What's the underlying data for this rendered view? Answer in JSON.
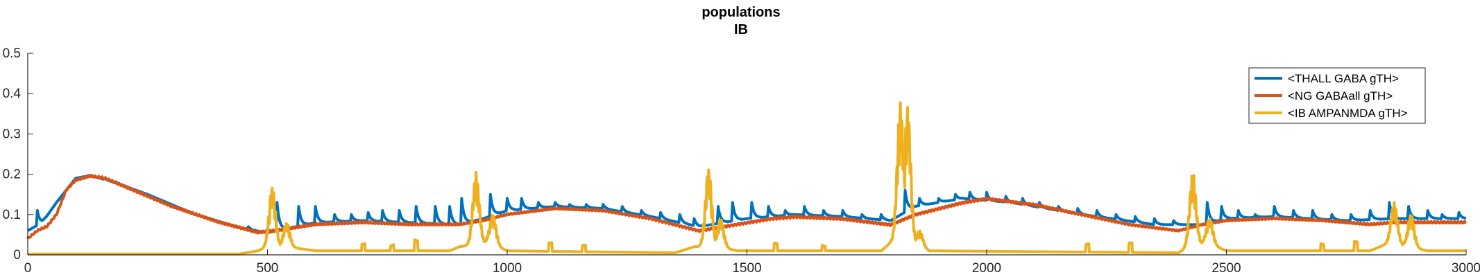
{
  "chart_data": {
    "type": "line",
    "title": "populations",
    "subtitle": "IB",
    "xlabel": "",
    "ylabel": "",
    "xlim": [
      0,
      3000
    ],
    "ylim": [
      0,
      0.5
    ],
    "x_ticks": [
      0,
      500,
      1000,
      1500,
      2000,
      2500,
      3000
    ],
    "y_ticks": [
      0,
      0.1,
      0.2,
      0.3,
      0.4,
      0.5
    ],
    "y_tick_labels": [
      "0",
      "0.1",
      "0.2",
      "0.3",
      "0.4",
      "0.5"
    ],
    "grid": false,
    "legend_position": "top-right",
    "colors": {
      "thall": "#0072BD",
      "ng": "#D95319",
      "ib": "#EDB120",
      "axis": "#262626"
    },
    "series": [
      {
        "name": "<THALL GABA gTH>",
        "color": "#0072BD",
        "envelope": [
          [
            0,
            0.06
          ],
          [
            30,
            0.08
          ],
          [
            60,
            0.13
          ],
          [
            100,
            0.19
          ],
          [
            130,
            0.197
          ],
          [
            180,
            0.18
          ],
          [
            250,
            0.15
          ],
          [
            350,
            0.1
          ],
          [
            450,
            0.065
          ],
          [
            500,
            0.055
          ],
          [
            600,
            0.08
          ],
          [
            700,
            0.085
          ],
          [
            800,
            0.08
          ],
          [
            900,
            0.075
          ],
          [
            950,
            0.09
          ],
          [
            1000,
            0.11
          ],
          [
            1100,
            0.12
          ],
          [
            1200,
            0.115
          ],
          [
            1300,
            0.095
          ],
          [
            1400,
            0.07
          ],
          [
            1500,
            0.09
          ],
          [
            1600,
            0.1
          ],
          [
            1700,
            0.095
          ],
          [
            1800,
            0.085
          ],
          [
            1850,
            0.12
          ],
          [
            1950,
            0.14
          ],
          [
            2050,
            0.13
          ],
          [
            2200,
            0.1
          ],
          [
            2350,
            0.075
          ],
          [
            2450,
            0.075
          ],
          [
            2500,
            0.09
          ],
          [
            2600,
            0.095
          ],
          [
            2750,
            0.085
          ],
          [
            2850,
            0.09
          ],
          [
            3000,
            0.09
          ]
        ],
        "spikes": [
          [
            20,
            0.11
          ],
          [
            60,
            0.115
          ],
          [
            95,
            0.13
          ],
          [
            160,
            0.19
          ],
          [
            185,
            0.18
          ],
          [
            285,
            0.12
          ],
          [
            310,
            0.11
          ],
          [
            340,
            0.1
          ],
          [
            380,
            0.085
          ],
          [
            420,
            0.075
          ],
          [
            460,
            0.07
          ],
          [
            520,
            0.13
          ],
          [
            565,
            0.12
          ],
          [
            600,
            0.12
          ],
          [
            640,
            0.1
          ],
          [
            675,
            0.1
          ],
          [
            710,
            0.105
          ],
          [
            740,
            0.11
          ],
          [
            775,
            0.11
          ],
          [
            810,
            0.12
          ],
          [
            850,
            0.12
          ],
          [
            880,
            0.12
          ],
          [
            905,
            0.14
          ],
          [
            965,
            0.15
          ],
          [
            1000,
            0.14
          ],
          [
            1030,
            0.14
          ],
          [
            1065,
            0.13
          ],
          [
            1100,
            0.13
          ],
          [
            1130,
            0.125
          ],
          [
            1165,
            0.125
          ],
          [
            1200,
            0.125
          ],
          [
            1240,
            0.12
          ],
          [
            1280,
            0.11
          ],
          [
            1320,
            0.105
          ],
          [
            1360,
            0.1
          ],
          [
            1390,
            0.09
          ],
          [
            1440,
            0.12
          ],
          [
            1470,
            0.13
          ],
          [
            1510,
            0.13
          ],
          [
            1545,
            0.12
          ],
          [
            1580,
            0.11
          ],
          [
            1620,
            0.12
          ],
          [
            1660,
            0.11
          ],
          [
            1700,
            0.11
          ],
          [
            1740,
            0.1
          ],
          [
            1780,
            0.1
          ],
          [
            1830,
            0.16
          ],
          [
            1860,
            0.14
          ],
          [
            1900,
            0.14
          ],
          [
            1935,
            0.15
          ],
          [
            1965,
            0.155
          ],
          [
            2000,
            0.155
          ],
          [
            2040,
            0.145
          ],
          [
            2075,
            0.14
          ],
          [
            2110,
            0.13
          ],
          [
            2150,
            0.12
          ],
          [
            2190,
            0.115
          ],
          [
            2230,
            0.11
          ],
          [
            2270,
            0.1
          ],
          [
            2310,
            0.095
          ],
          [
            2350,
            0.09
          ],
          [
            2390,
            0.085
          ],
          [
            2460,
            0.13
          ],
          [
            2490,
            0.12
          ],
          [
            2525,
            0.11
          ],
          [
            2560,
            0.1
          ],
          [
            2600,
            0.12
          ],
          [
            2640,
            0.11
          ],
          [
            2680,
            0.11
          ],
          [
            2720,
            0.1
          ],
          [
            2760,
            0.1
          ],
          [
            2800,
            0.11
          ],
          [
            2840,
            0.13
          ],
          [
            2880,
            0.12
          ],
          [
            2920,
            0.11
          ],
          [
            2950,
            0.1
          ],
          [
            2985,
            0.105
          ]
        ]
      },
      {
        "name": "<NG GABAall gTH>",
        "color": "#D95319",
        "envelope": [
          [
            0,
            0.04
          ],
          [
            20,
            0.06
          ],
          [
            40,
            0.07
          ],
          [
            60,
            0.1
          ],
          [
            80,
            0.16
          ],
          [
            100,
            0.185
          ],
          [
            130,
            0.195
          ],
          [
            160,
            0.19
          ],
          [
            200,
            0.17
          ],
          [
            300,
            0.12
          ],
          [
            400,
            0.08
          ],
          [
            480,
            0.055
          ],
          [
            520,
            0.06
          ],
          [
            600,
            0.075
          ],
          [
            700,
            0.08
          ],
          [
            800,
            0.075
          ],
          [
            900,
            0.075
          ],
          [
            950,
            0.085
          ],
          [
            1000,
            0.1
          ],
          [
            1100,
            0.115
          ],
          [
            1200,
            0.11
          ],
          [
            1300,
            0.09
          ],
          [
            1400,
            0.06
          ],
          [
            1450,
            0.07
          ],
          [
            1500,
            0.08
          ],
          [
            1550,
            0.09
          ],
          [
            1600,
            0.095
          ],
          [
            1700,
            0.09
          ],
          [
            1800,
            0.075
          ],
          [
            1850,
            0.1
          ],
          [
            1950,
            0.13
          ],
          [
            2000,
            0.14
          ],
          [
            2100,
            0.125
          ],
          [
            2200,
            0.1
          ],
          [
            2300,
            0.075
          ],
          [
            2400,
            0.06
          ],
          [
            2450,
            0.075
          ],
          [
            2500,
            0.085
          ],
          [
            2600,
            0.09
          ],
          [
            2700,
            0.085
          ],
          [
            2800,
            0.075
          ],
          [
            2850,
            0.08
          ],
          [
            2900,
            0.08
          ],
          [
            3000,
            0.08
          ]
        ]
      },
      {
        "name": "<IB AMPANMDA gTH>",
        "color": "#EDB120",
        "envelope": [
          [
            0,
            0.002
          ],
          [
            440,
            0.002
          ],
          [
            480,
            0.01
          ],
          [
            500,
            0.02
          ],
          [
            540,
            0.02
          ],
          [
            600,
            0.01
          ],
          [
            880,
            0.01
          ],
          [
            900,
            0.02
          ],
          [
            960,
            0.03
          ],
          [
            1000,
            0.01
          ],
          [
            1350,
            0.005
          ],
          [
            1390,
            0.02
          ],
          [
            1440,
            0.02
          ],
          [
            1480,
            0.01
          ],
          [
            1780,
            0.01
          ],
          [
            1800,
            0.03
          ],
          [
            1840,
            0.03
          ],
          [
            1880,
            0.01
          ],
          [
            2400,
            0.005
          ],
          [
            2420,
            0.02
          ],
          [
            2460,
            0.03
          ],
          [
            2500,
            0.01
          ],
          [
            2800,
            0.01
          ],
          [
            2840,
            0.03
          ],
          [
            2880,
            0.02
          ],
          [
            2920,
            0.01
          ],
          [
            3000,
            0.01
          ]
        ],
        "bursts": [
          [
            510,
            0.17
          ],
          [
            540,
            0.08
          ],
          [
            935,
            0.205
          ],
          [
            970,
            0.1
          ],
          [
            1420,
            0.215
          ],
          [
            1445,
            0.09
          ],
          [
            1820,
            0.38
          ],
          [
            1835,
            0.37
          ],
          [
            1860,
            0.06
          ],
          [
            2430,
            0.205
          ],
          [
            2465,
            0.09
          ],
          [
            2850,
            0.13
          ],
          [
            2885,
            0.1
          ]
        ],
        "blips": [
          [
            700,
            0.03
          ],
          [
            760,
            0.035
          ],
          [
            810,
            0.04
          ],
          [
            1090,
            0.03
          ],
          [
            1160,
            0.025
          ],
          [
            1560,
            0.03
          ],
          [
            1660,
            0.035
          ],
          [
            2210,
            0.03
          ],
          [
            2300,
            0.03
          ],
          [
            2700,
            0.03
          ],
          [
            2770,
            0.035
          ]
        ]
      }
    ]
  }
}
